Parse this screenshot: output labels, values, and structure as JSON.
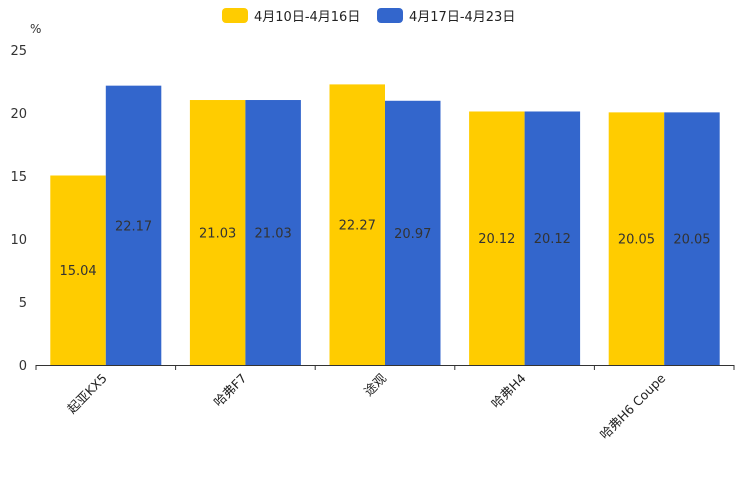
{
  "chart_data": {
    "type": "bar",
    "title": "",
    "ylabel": "%",
    "xlabel": "",
    "ylim": [
      0,
      25
    ],
    "yticks": [
      0,
      5,
      10,
      15,
      20,
      25
    ],
    "categories": [
      "起亚KX5",
      "哈弗F7",
      "途观",
      "哈弗H4",
      "哈弗H6 Coupe"
    ],
    "series": [
      {
        "name": "4月10日-4月16日",
        "color": "#FFCC00",
        "values": [
          15.04,
          21.03,
          22.27,
          20.12,
          20.05
        ]
      },
      {
        "name": "4月17日-4月23日",
        "color": "#3366CC",
        "values": [
          22.17,
          21.03,
          20.97,
          20.12,
          20.05
        ]
      }
    ],
    "legend_position": "top-center",
    "grid": false
  }
}
